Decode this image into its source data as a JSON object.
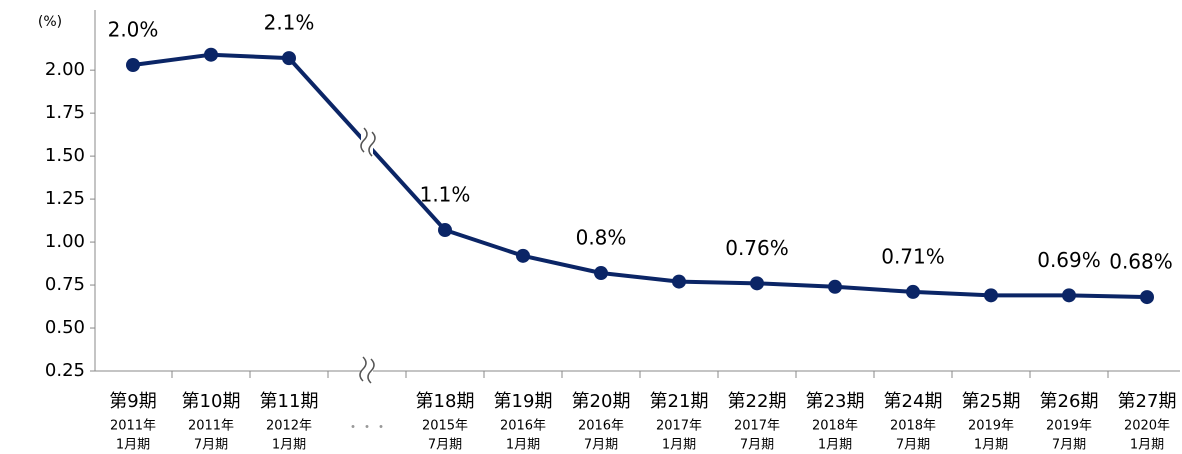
{
  "chart_data": {
    "type": "line",
    "y_axis_label": "(%)",
    "categories": [
      "第9期",
      "第10期",
      "第11期",
      "・・・",
      "第18期",
      "第19期",
      "第20期",
      "第21期",
      "第22期",
      "第23期",
      "第24期",
      "第25期",
      "第26期",
      "第27期"
    ],
    "category_years": [
      "2011年",
      "2011年",
      "2012年",
      null,
      "2015年",
      "2016年",
      "2016年",
      "2017年",
      "2017年",
      "2018年",
      "2018年",
      "2019年",
      "2019年",
      "2020年"
    ],
    "category_months": [
      "1月期",
      "7月期",
      "1月期",
      null,
      "7月期",
      "1月期",
      "7月期",
      "1月期",
      "7月期",
      "1月期",
      "7月期",
      "1月期",
      "7月期",
      "1月期"
    ],
    "values": [
      2.03,
      2.09,
      2.07,
      null,
      1.07,
      0.92,
      0.82,
      0.77,
      0.76,
      0.74,
      0.71,
      0.69,
      0.69,
      0.68
    ],
    "value_labels": [
      "2.0%",
      null,
      "2.1%",
      null,
      "1.1%",
      null,
      "0.8%",
      null,
      "0.76%",
      null,
      "0.71%",
      null,
      "0.69%",
      "0.68%"
    ],
    "color": "#0b2566",
    "ylim": [
      0.25,
      2.35
    ],
    "yticks": [
      0.25,
      {
        "value": 0.5,
        "label": "0.50"
      },
      0.75,
      {
        "value": 1,
        "label": "1.00"
      },
      1.25,
      {
        "value": 1.5,
        "label": "1.50"
      },
      1.75,
      {
        "value": 2,
        "label": "2.00"
      }
    ]
  }
}
